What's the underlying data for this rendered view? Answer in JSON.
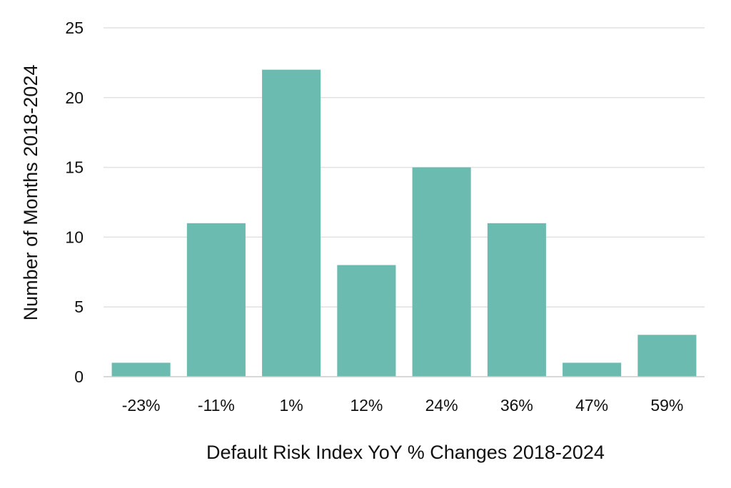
{
  "chart_data": {
    "type": "bar",
    "categories": [
      "-23%",
      "-11%",
      "1%",
      "12%",
      "24%",
      "36%",
      "47%",
      "59%"
    ],
    "values": [
      1,
      11,
      22,
      8,
      15,
      11,
      1,
      3
    ],
    "title": "",
    "xlabel": "Default Risk Index YoY % Changes 2018-2024",
    "ylabel": "Number of Months 2018-2024",
    "ylim": [
      0,
      25
    ],
    "yticks": [
      0,
      5,
      10,
      15,
      20,
      25
    ],
    "grid": true,
    "bar_color": "#6bbbb1",
    "grid_color": "#e2e2e2",
    "axis_color": "#cccccc"
  }
}
